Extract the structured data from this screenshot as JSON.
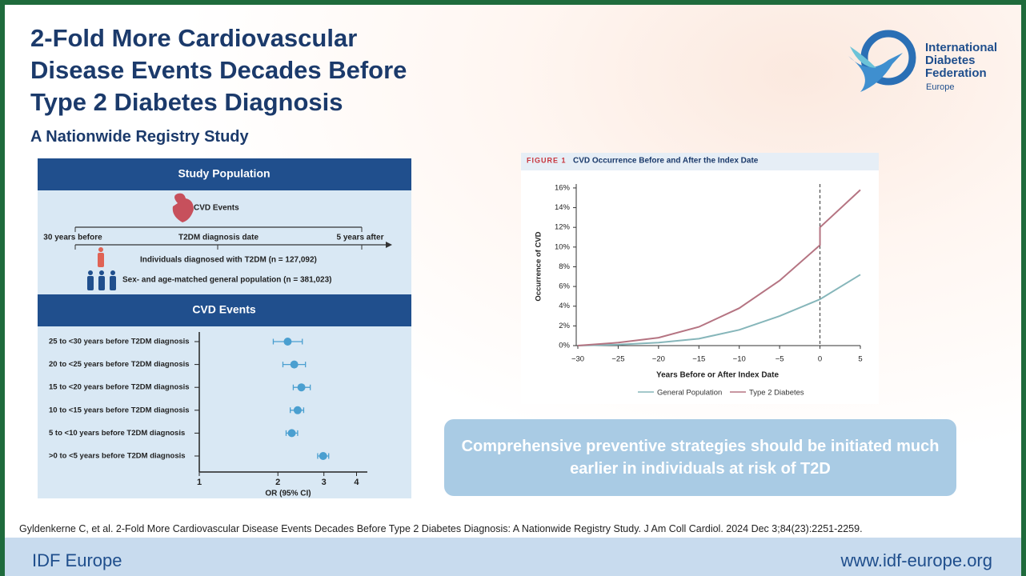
{
  "header": {
    "title": "2-Fold More Cardiovascular Disease Events Decades Before Type 2 Diabetes Diagnosis",
    "subtitle": "A Nationwide Registry Study"
  },
  "logo": {
    "name": "International Diabetes Federation",
    "region": "Europe"
  },
  "study_population": {
    "title": "Study Population",
    "event": "CVD Events",
    "timeline": [
      "30 years before",
      "T2DM diagnosis date",
      "5 years after"
    ],
    "cohorts": [
      "Individuals diagnosed with T2DM (n = 127,092)",
      "Sex- and age-matched general population (n = 381,023)"
    ]
  },
  "chart_data": [
    {
      "type": "forest",
      "title": "CVD Events",
      "categories": [
        "25 to <30 years before T2DM diagnosis",
        "20 to <25 years before T2DM diagnosis",
        "15 to <20 years before T2DM diagnosis",
        "10 to <15 years before T2DM diagnosis",
        "5 to <10 years before T2DM diagnosis",
        ">0 to <5 years before T2DM diagnosis"
      ],
      "values": [
        2.18,
        2.31,
        2.46,
        2.38,
        2.26,
        2.98
      ],
      "lower": [
        1.92,
        2.09,
        2.29,
        2.23,
        2.15,
        2.84
      ],
      "upper": [
        2.48,
        2.55,
        2.66,
        2.51,
        2.38,
        3.13
      ],
      "color": "#4a9fd0",
      "xlim": [
        1,
        4.4
      ],
      "xticks": [
        1,
        2,
        3,
        4
      ],
      "log_scale": true,
      "xlabel": "OR (95% CI)"
    },
    {
      "type": "line",
      "label": "FIGURE 1",
      "title": "CVD Occurrence Before and After the Index Date",
      "x": [
        -30,
        -25,
        -20,
        -15,
        -10,
        -5,
        0,
        0,
        5
      ],
      "series": [
        {
          "name": "General Population",
          "color": "#86b6ba",
          "values": [
            0,
            0.1,
            0.3,
            0.7,
            1.6,
            3.0,
            4.7,
            4.7,
            7.2
          ]
        },
        {
          "name": "Type 2 Diabetes",
          "color": "#b57482",
          "values": [
            0,
            0.3,
            0.8,
            1.9,
            3.8,
            6.6,
            10.2,
            12.0,
            15.8
          ]
        }
      ],
      "xlim": [
        -30,
        5
      ],
      "xticks": [
        {
          "value": -30,
          "label": "−30"
        },
        {
          "value": -25,
          "label": "−25"
        },
        {
          "value": -20,
          "label": "−20"
        },
        {
          "value": -15,
          "label": "−15"
        },
        {
          "value": -10,
          "label": "−10"
        },
        {
          "value": -5,
          "label": "−5"
        },
        0,
        5
      ],
      "ylim": [
        0,
        16.4
      ],
      "yticks": [
        {
          "value": 0,
          "label": "0%"
        },
        {
          "value": 2,
          "label": "2%"
        },
        {
          "value": 4,
          "label": "4%"
        },
        {
          "value": 6,
          "label": "6%"
        },
        {
          "value": 8,
          "label": "8%"
        },
        {
          "value": 10,
          "label": "10%"
        },
        {
          "value": 12,
          "label": "12%"
        },
        {
          "value": 14,
          "label": "14%"
        },
        {
          "value": 16,
          "label": "16%"
        }
      ],
      "index_date": 0,
      "xlabel": "Years Before or After Index Date",
      "ylabel": "Occurrence of CVD",
      "legend": "bottom"
    }
  ],
  "callout": "Comprehensive preventive strategies should be initiated much earlier in individuals at risk of T2D",
  "citation": "Gyldenkerne C, et al. 2-Fold More Cardiovascular Disease Events Decades Before Type 2 Diabetes Diagnosis: A Nationwide Registry Study. J Am Coll Cardiol. 2024 Dec 3;84(23):2251-2259.",
  "footer": {
    "left": "IDF Europe",
    "right": "www.idf-europe.org"
  }
}
